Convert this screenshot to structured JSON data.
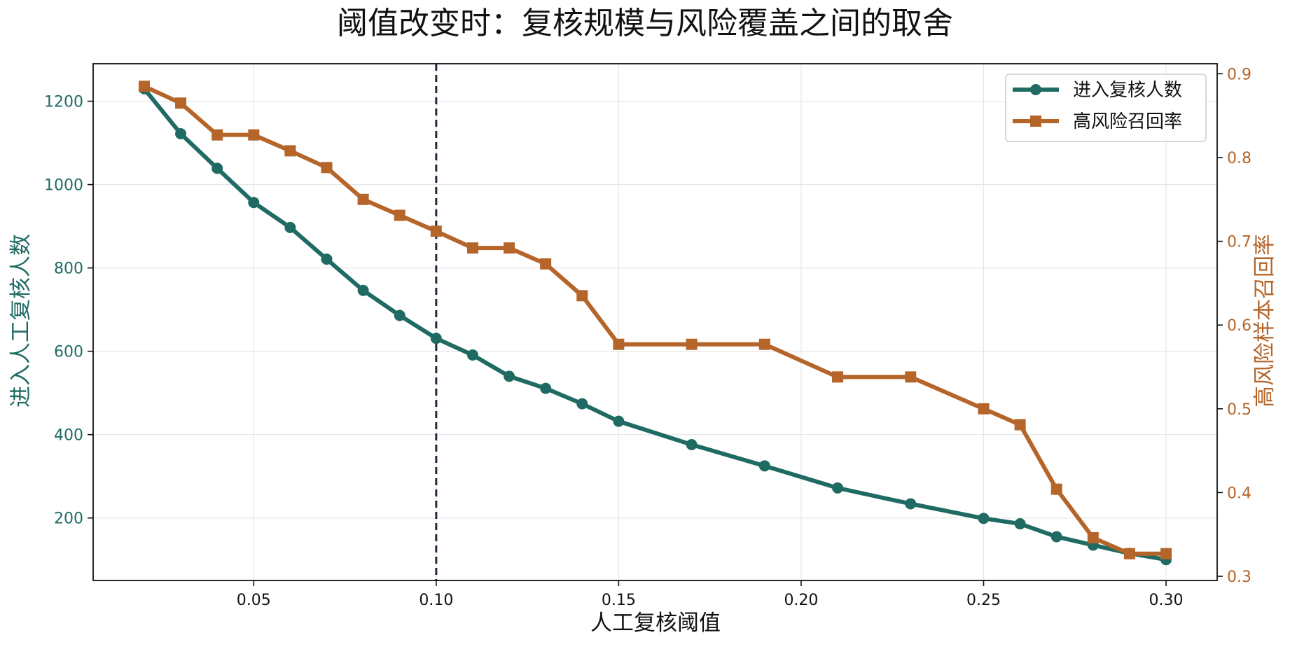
{
  "colors": {
    "left_series": "#1f6b63",
    "right_series": "#b5652a",
    "threshold_line": "#1f2a3d",
    "grid": "#e6e6e6",
    "axis": "#111111"
  },
  "chart_data": {
    "type": "line",
    "title": "阈值改变时：复核规模与风险覆盖之间的取舍",
    "xlabel": "人工复核阈值",
    "ylabel_left": "进入人工复核人数",
    "ylabel_right": "高风险样本召回率",
    "xlim": [
      0.006,
      0.314
    ],
    "ylim_left": [
      50,
      1290
    ],
    "ylim_right": [
      0.295,
      0.912
    ],
    "x_ticks": [
      0.05,
      0.1,
      0.15,
      0.2,
      0.25,
      0.3
    ],
    "x_tick_labels": [
      "0.05",
      "0.10",
      "0.15",
      "0.20",
      "0.25",
      "0.30"
    ],
    "y_left_ticks": [
      200,
      400,
      600,
      800,
      1000,
      1200
    ],
    "y_left_tick_labels": [
      "200",
      "400",
      "600",
      "800",
      "1000",
      "1200"
    ],
    "y_right_ticks": [
      0.3,
      0.4,
      0.5,
      0.6,
      0.7,
      0.8,
      0.9
    ],
    "y_right_tick_labels": [
      "0.3",
      "0.4",
      "0.5",
      "0.6",
      "0.7",
      "0.8",
      "0.9"
    ],
    "grid": true,
    "legend_position": "top-right",
    "threshold_x": 0.1,
    "series": [
      {
        "name": "进入复核人数",
        "axis": "left",
        "marker": "circle",
        "x": [
          0.02,
          0.03,
          0.04,
          0.05,
          0.06,
          0.07,
          0.08,
          0.09,
          0.1,
          0.11,
          0.12,
          0.13,
          0.14,
          0.15,
          0.17,
          0.19,
          0.21,
          0.23,
          0.25,
          0.26,
          0.27,
          0.28,
          0.29,
          0.3
        ],
        "values": [
          1230,
          1122,
          1039,
          957,
          897,
          821,
          746,
          686,
          631,
          591,
          540,
          511,
          474,
          432,
          376,
          325,
          272,
          234,
          199,
          186,
          155,
          135,
          115,
          100
        ]
      },
      {
        "name": "高风险召回率",
        "axis": "right",
        "marker": "square",
        "x": [
          0.02,
          0.03,
          0.04,
          0.05,
          0.06,
          0.07,
          0.08,
          0.09,
          0.1,
          0.11,
          0.12,
          0.13,
          0.14,
          0.15,
          0.17,
          0.19,
          0.21,
          0.23,
          0.25,
          0.26,
          0.27,
          0.28,
          0.29,
          0.3
        ],
        "values": [
          0.885,
          0.865,
          0.827,
          0.827,
          0.808,
          0.788,
          0.75,
          0.731,
          0.712,
          0.692,
          0.692,
          0.673,
          0.635,
          0.577,
          0.577,
          0.577,
          0.538,
          0.538,
          0.5,
          0.481,
          0.404,
          0.346,
          0.327,
          0.327
        ]
      }
    ]
  }
}
